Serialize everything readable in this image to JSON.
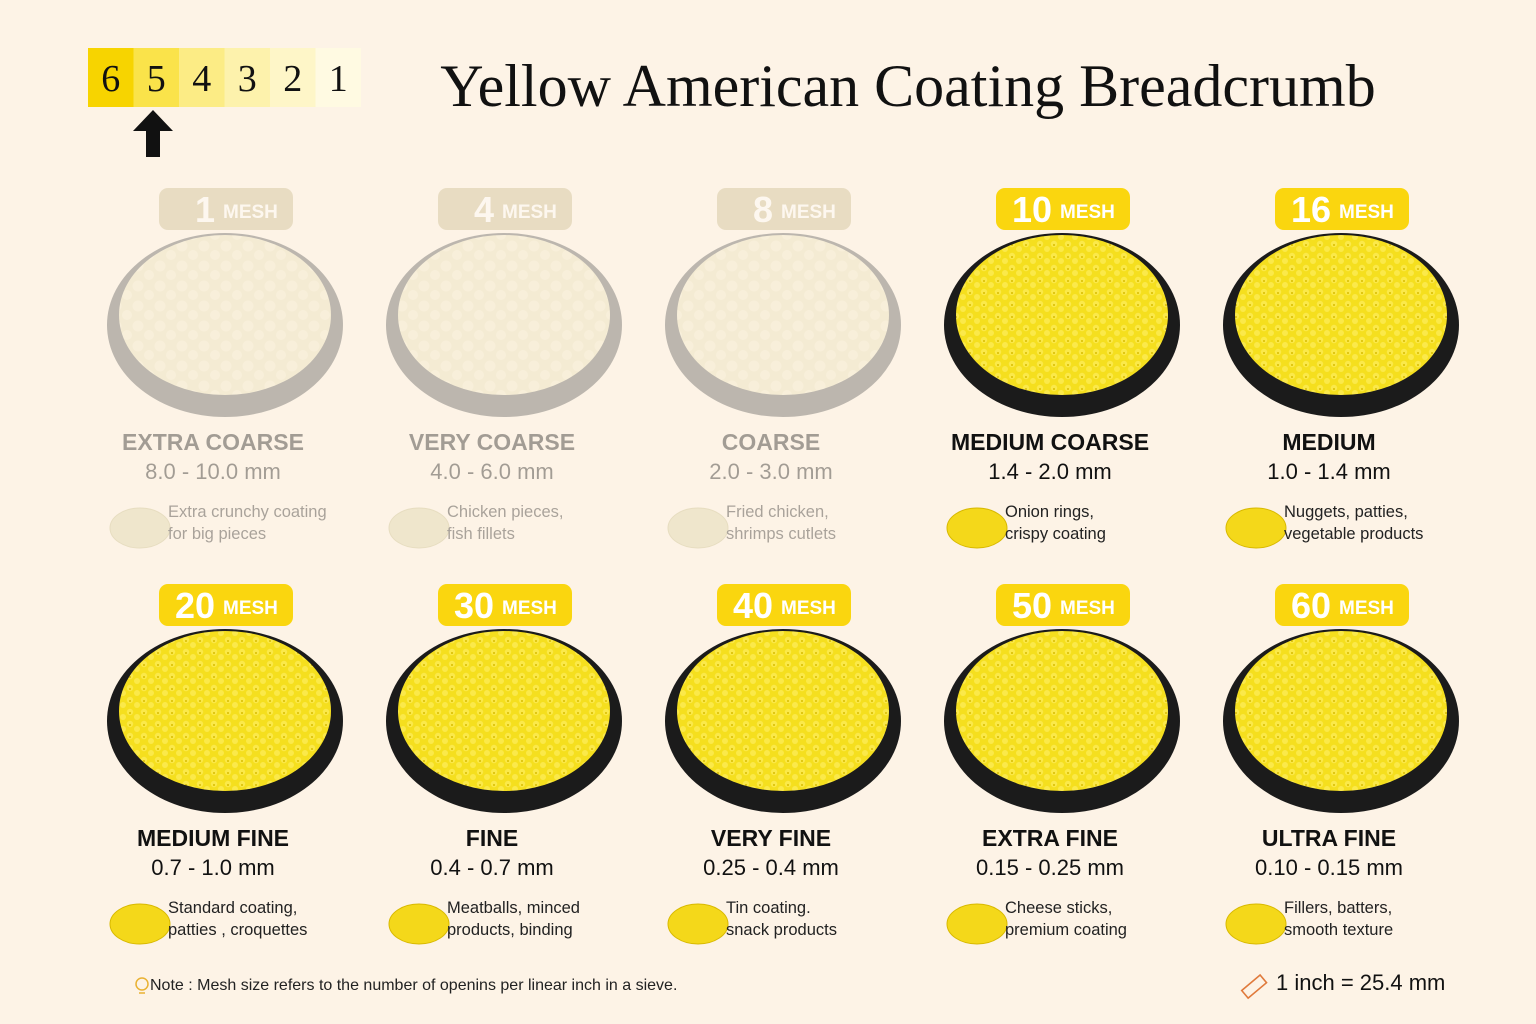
{
  "scale": [
    {
      "label": 6,
      "color": "#f7d400"
    },
    {
      "label": 5,
      "color": "#fae34a"
    },
    {
      "label": 4,
      "color": "#fcec85"
    },
    {
      "label": 3,
      "color": "#fdf2ac"
    },
    {
      "label": 2,
      "color": "#fef6c8"
    },
    {
      "label": 1,
      "color": "#fffae2"
    }
  ],
  "title": "Yellow American Coating Breadcrumb",
  "mesh_unit": "MESH",
  "items": [
    {
      "mesh": 1,
      "name": "EXTRA COARSE",
      "size": "8.0 - 10.0 mm",
      "description": [
        "Extra crunchy coating",
        "for big pieces"
      ],
      "dimmed": true
    },
    {
      "mesh": 4,
      "name": "VERY COARSE",
      "size": "4.0 - 6.0 mm",
      "description": [
        "Chicken pieces,",
        "fish fillets"
      ],
      "dimmed": true
    },
    {
      "mesh": 8,
      "name": "COARSE",
      "size": "2.0 - 3.0 mm",
      "description": [
        "Fried chicken,",
        "shrimps cutlets"
      ],
      "dimmed": true
    },
    {
      "mesh": 10,
      "name": "MEDIUM COARSE",
      "size": "1.4 - 2.0 mm",
      "description": [
        "Onion rings,",
        "crispy coating"
      ],
      "dimmed": false
    },
    {
      "mesh": 16,
      "name": "MEDIUM",
      "size": "1.0 - 1.4 mm",
      "description": [
        "Nuggets, patties,",
        "vegetable products"
      ],
      "dimmed": false
    },
    {
      "mesh": 20,
      "name": "MEDIUM FINE",
      "size": "0.7 - 1.0 mm",
      "description": [
        "Standard coating,",
        "patties , croquettes"
      ],
      "dimmed": false
    },
    {
      "mesh": 30,
      "name": "FINE",
      "size": "0.4 - 0.7 mm",
      "description": [
        "Meatballs, minced",
        "products, binding"
      ],
      "dimmed": false
    },
    {
      "mesh": 40,
      "name": "VERY FINE",
      "size": "0.25 - 0.4 mm",
      "description": [
        "Tin coating.",
        "snack products"
      ],
      "dimmed": false
    },
    {
      "mesh": 50,
      "name": "EXTRA FINE",
      "size": "0.15 - 0.25 mm",
      "description": [
        "Cheese sticks,",
        "premium coating"
      ],
      "dimmed": false
    },
    {
      "mesh": 60,
      "name": "ULTRA FINE",
      "size": "0.10 - 0.15 mm",
      "description": [
        "Fillers, batters,",
        "smooth texture"
      ],
      "dimmed": false
    }
  ],
  "note": "Note : Mesh size refers to the number of openins per linear inch in a sieve.",
  "conversion": "1 inch = 25.4 mm"
}
